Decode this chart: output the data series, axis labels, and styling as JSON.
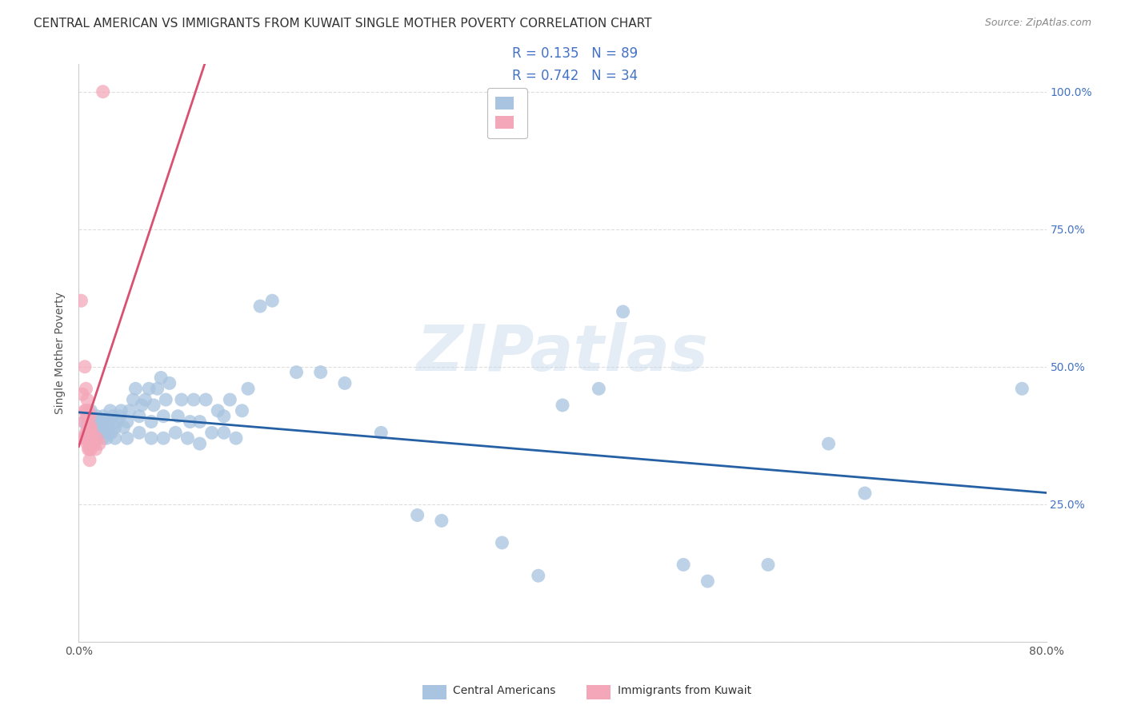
{
  "title": "CENTRAL AMERICAN VS IMMIGRANTS FROM KUWAIT SINGLE MOTHER POVERTY CORRELATION CHART",
  "source": "Source: ZipAtlas.com",
  "ylabel": "Single Mother Poverty",
  "xlim": [
    0.0,
    0.8
  ],
  "ylim": [
    0.0,
    1.05
  ],
  "watermark": "ZIPatlas",
  "blue_color": "#a8c4e0",
  "blue_line_color": "#2660a4",
  "pink_color": "#f4a7b9",
  "pink_line_color": "#d95070",
  "legend_R1": "0.135",
  "legend_N1": "89",
  "legend_R2": "0.742",
  "legend_N2": "34",
  "legend_label1": "Central Americans",
  "legend_label2": "Immigrants from Kuwait",
  "blue_scatter_x": [
    0.005,
    0.007,
    0.008,
    0.01,
    0.01,
    0.01,
    0.012,
    0.013,
    0.014,
    0.015,
    0.015,
    0.015,
    0.016,
    0.017,
    0.018,
    0.019,
    0.02,
    0.02,
    0.02,
    0.021,
    0.022,
    0.023,
    0.024,
    0.025,
    0.025,
    0.026,
    0.027,
    0.028,
    0.03,
    0.03,
    0.032,
    0.034,
    0.035,
    0.037,
    0.04,
    0.04,
    0.042,
    0.045,
    0.047,
    0.05,
    0.05,
    0.052,
    0.055,
    0.058,
    0.06,
    0.06,
    0.062,
    0.065,
    0.068,
    0.07,
    0.07,
    0.072,
    0.075,
    0.08,
    0.082,
    0.085,
    0.09,
    0.092,
    0.095,
    0.1,
    0.1,
    0.105,
    0.11,
    0.115,
    0.12,
    0.12,
    0.125,
    0.13,
    0.135,
    0.14,
    0.15,
    0.16,
    0.18,
    0.2,
    0.22,
    0.25,
    0.28,
    0.3,
    0.35,
    0.38,
    0.4,
    0.43,
    0.45,
    0.5,
    0.52,
    0.57,
    0.62,
    0.65,
    0.78
  ],
  "blue_scatter_y": [
    0.4,
    0.39,
    0.41,
    0.38,
    0.4,
    0.42,
    0.39,
    0.4,
    0.38,
    0.37,
    0.39,
    0.41,
    0.38,
    0.4,
    0.38,
    0.39,
    0.37,
    0.39,
    0.41,
    0.38,
    0.4,
    0.37,
    0.39,
    0.38,
    0.4,
    0.42,
    0.38,
    0.41,
    0.37,
    0.39,
    0.4,
    0.41,
    0.42,
    0.39,
    0.37,
    0.4,
    0.42,
    0.44,
    0.46,
    0.38,
    0.41,
    0.43,
    0.44,
    0.46,
    0.37,
    0.4,
    0.43,
    0.46,
    0.48,
    0.37,
    0.41,
    0.44,
    0.47,
    0.38,
    0.41,
    0.44,
    0.37,
    0.4,
    0.44,
    0.36,
    0.4,
    0.44,
    0.38,
    0.42,
    0.38,
    0.41,
    0.44,
    0.37,
    0.42,
    0.46,
    0.61,
    0.62,
    0.49,
    0.49,
    0.47,
    0.38,
    0.23,
    0.22,
    0.18,
    0.12,
    0.43,
    0.46,
    0.6,
    0.14,
    0.11,
    0.14,
    0.36,
    0.27,
    0.46
  ],
  "pink_scatter_x": [
    0.002,
    0.003,
    0.004,
    0.004,
    0.005,
    0.005,
    0.005,
    0.006,
    0.006,
    0.006,
    0.007,
    0.007,
    0.007,
    0.007,
    0.008,
    0.008,
    0.008,
    0.008,
    0.009,
    0.009,
    0.009,
    0.009,
    0.009,
    0.01,
    0.01,
    0.01,
    0.011,
    0.011,
    0.012,
    0.013,
    0.014,
    0.015,
    0.017,
    0.02
  ],
  "pink_scatter_y": [
    0.62,
    0.45,
    0.4,
    0.37,
    0.5,
    0.42,
    0.37,
    0.46,
    0.42,
    0.38,
    0.44,
    0.41,
    0.38,
    0.36,
    0.42,
    0.4,
    0.37,
    0.35,
    0.41,
    0.39,
    0.37,
    0.35,
    0.33,
    0.39,
    0.37,
    0.35,
    0.38,
    0.36,
    0.37,
    0.36,
    0.35,
    0.37,
    0.36,
    1.0
  ],
  "grid_color": "#dddddd",
  "background_color": "#ffffff",
  "title_fontsize": 11,
  "axis_label_fontsize": 10,
  "tick_fontsize": 10,
  "legend_fontsize": 12
}
